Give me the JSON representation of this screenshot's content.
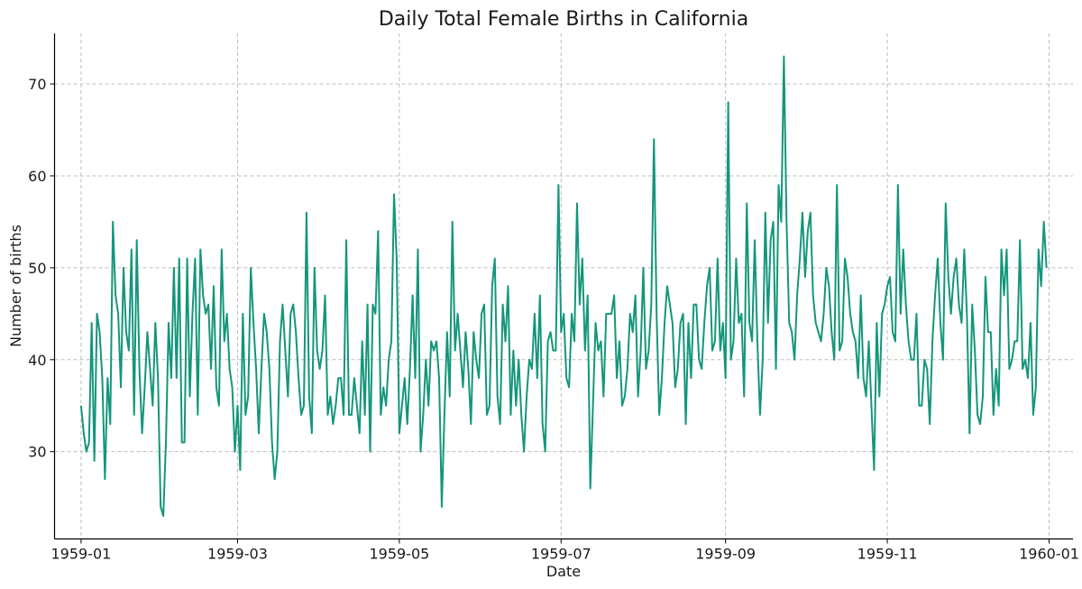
{
  "chart_data": {
    "type": "line",
    "title": "Daily Total Female Births in California",
    "xlabel": "Date",
    "ylabel": "Number of births",
    "x_start": "1959-01-01",
    "x_end": "1959-12-31",
    "xlim": [
      "1958-12-22",
      "1960-01-10"
    ],
    "ylim": [
      20.5,
      75.5
    ],
    "x_ticks": [
      "1959-01",
      "1959-03",
      "1959-05",
      "1959-07",
      "1959-09",
      "1959-11",
      "1960-01"
    ],
    "x_tick_dates": [
      "1959-01-01",
      "1959-03-01",
      "1959-05-01",
      "1959-07-01",
      "1959-09-01",
      "1959-11-01",
      "1960-01-01"
    ],
    "y_ticks": [
      30,
      40,
      50,
      60,
      70
    ],
    "grid": true,
    "color": "#14967a",
    "series": [
      {
        "values": [
          35,
          32,
          30,
          31,
          44,
          29,
          45,
          43,
          38,
          27,
          38,
          33,
          55,
          47,
          45,
          37,
          50,
          43,
          41,
          52,
          34,
          53,
          39,
          32,
          37,
          43,
          39,
          35,
          44,
          38,
          24,
          23,
          31,
          44,
          38,
          50,
          38,
          51,
          31,
          31,
          51,
          36,
          45,
          51,
          34,
          52,
          47,
          45,
          46,
          39,
          48,
          37,
          35,
          52,
          42,
          45,
          39,
          37,
          30,
          35,
          28,
          45,
          34,
          36,
          50,
          44,
          39,
          32,
          39,
          45,
          43,
          39,
          31,
          27,
          30,
          42,
          46,
          41,
          36,
          45,
          46,
          43,
          38,
          34,
          35,
          56,
          36,
          32,
          50,
          41,
          39,
          41,
          47,
          34,
          36,
          33,
          35,
          38,
          38,
          34,
          53,
          34,
          34,
          38,
          35,
          32,
          42,
          34,
          46,
          30,
          46,
          45,
          54,
          34,
          37,
          35,
          40,
          42,
          58,
          51,
          32,
          35,
          38,
          33,
          39,
          47,
          38,
          52,
          30,
          34,
          40,
          35,
          42,
          41,
          42,
          38,
          24,
          34,
          43,
          36,
          55,
          41,
          45,
          41,
          37,
          43,
          39,
          33,
          43,
          40,
          38,
          45,
          46,
          34,
          35,
          48,
          51,
          36,
          33,
          46,
          42,
          48,
          34,
          41,
          35,
          40,
          34,
          30,
          36,
          40,
          39,
          45,
          38,
          47,
          33,
          30,
          42,
          43,
          41,
          41,
          59,
          43,
          45,
          38,
          37,
          45,
          42,
          57,
          46,
          51,
          41,
          47,
          26,
          35,
          44,
          41,
          42,
          36,
          45,
          45,
          45,
          47,
          38,
          42,
          35,
          36,
          39,
          45,
          43,
          47,
          36,
          41,
          50,
          39,
          41,
          46,
          64,
          45,
          34,
          38,
          44,
          48,
          46,
          44,
          37,
          39,
          44,
          45,
          33,
          44,
          38,
          46,
          46,
          40,
          39,
          44,
          48,
          50,
          41,
          42,
          51,
          41,
          44,
          38,
          68,
          40,
          42,
          51,
          44,
          45,
          36,
          57,
          44,
          42,
          53,
          42,
          34,
          40,
          56,
          44,
          53,
          55,
          39,
          59,
          55,
          73,
          55,
          44,
          43,
          40,
          47,
          51,
          56,
          49,
          54,
          56,
          47,
          44,
          43,
          42,
          45,
          50,
          48,
          43,
          40,
          59,
          41,
          42,
          51,
          49,
          45,
          43,
          42,
          38,
          47,
          38,
          36,
          42,
          35,
          28,
          44,
          36,
          45,
          46,
          48,
          49,
          43,
          42,
          59,
          45,
          52,
          46,
          42,
          40,
          40,
          45,
          35,
          35,
          40,
          39,
          33,
          42,
          47,
          51,
          44,
          40,
          57,
          49,
          45,
          49,
          51,
          46,
          44,
          52,
          45,
          32,
          46,
          41,
          34,
          33,
          36,
          49,
          43,
          43,
          34,
          39,
          35,
          52,
          47,
          52,
          39,
          40,
          42,
          42,
          53,
          39,
          40,
          38,
          44,
          34,
          37,
          52,
          48,
          55,
          50
        ]
      }
    ]
  }
}
